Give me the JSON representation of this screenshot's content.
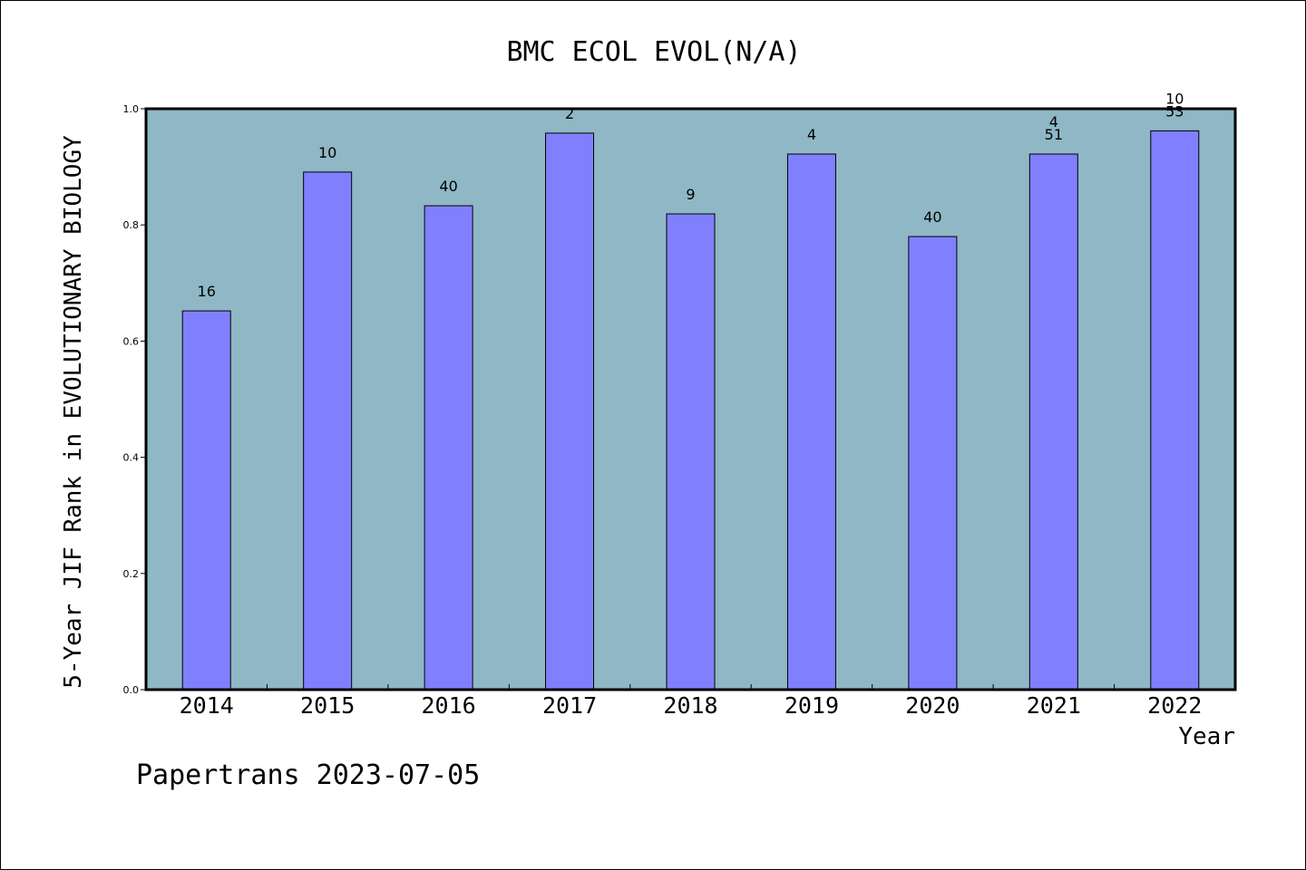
{
  "chart_data": {
    "type": "bar",
    "title": "BMC ECOL EVOL(N/A)",
    "xlabel": "Year",
    "ylabel": "5-Year JIF Rank in EVOLUTIONARY BIOLOGY",
    "categories": [
      "2014",
      "2015",
      "2016",
      "2017",
      "2018",
      "2019",
      "2020",
      "2021",
      "2022"
    ],
    "values": [
      0.652,
      0.891,
      0.833,
      0.958,
      0.819,
      0.922,
      0.78,
      0.922,
      0.962
    ],
    "bar_labels": [
      [
        "16"
      ],
      [
        "10"
      ],
      [
        "40"
      ],
      [
        "2"
      ],
      [
        "9"
      ],
      [
        "4"
      ],
      [
        "40"
      ],
      [
        "4",
        "51"
      ],
      [
        "10",
        "53"
      ]
    ],
    "ylim": [
      0,
      1.0
    ],
    "yticks": [
      "0.0",
      "0.2",
      "0.4",
      "0.6",
      "0.8",
      "1.0"
    ],
    "plot_background": "#8fb7c6",
    "bar_color": "#8080ff",
    "grid": false,
    "legend": "none"
  },
  "footer": "Papertrans 2023-07-05"
}
